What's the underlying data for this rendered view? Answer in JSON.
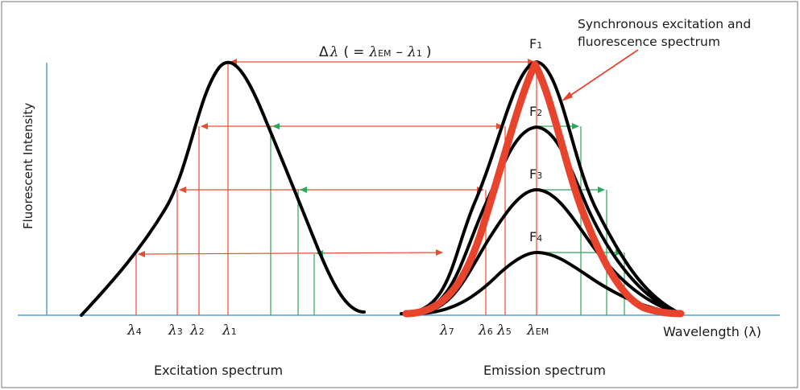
{
  "diagram": {
    "y_axis_label": "Fluorescent Intensity",
    "x_axis_label": "Wavelength (λ)",
    "excitation_label": "Excitation spectrum",
    "emission_label": "Emission spectrum",
    "synchronous_label_line1": "Synchronous excitation and",
    "synchronous_label_line2": "fluorescence spectrum",
    "delta_symbol": "Δ",
    "lambda": "λ",
    "delta_open": "(",
    "delta_eq": "=",
    "delta_minus": "–",
    "delta_close": ")",
    "sub_em": "EM",
    "sub_1": "1",
    "F_letter": "F",
    "peaks": [
      "1",
      "2",
      "3",
      "4"
    ],
    "tick_subscripts": {
      "l4": "4",
      "l3": "3",
      "l2": "2",
      "l1": "1",
      "l7": "7",
      "l6": "6",
      "l5": "5",
      "lem": "EM"
    },
    "colors": {
      "curve": "#000000",
      "axis": "#5b9bd5",
      "red_arrow": "#e84c30",
      "green_arrow": "#2ea55a",
      "synchronous": "#e8432c",
      "frame": "#7f7f7f"
    }
  }
}
